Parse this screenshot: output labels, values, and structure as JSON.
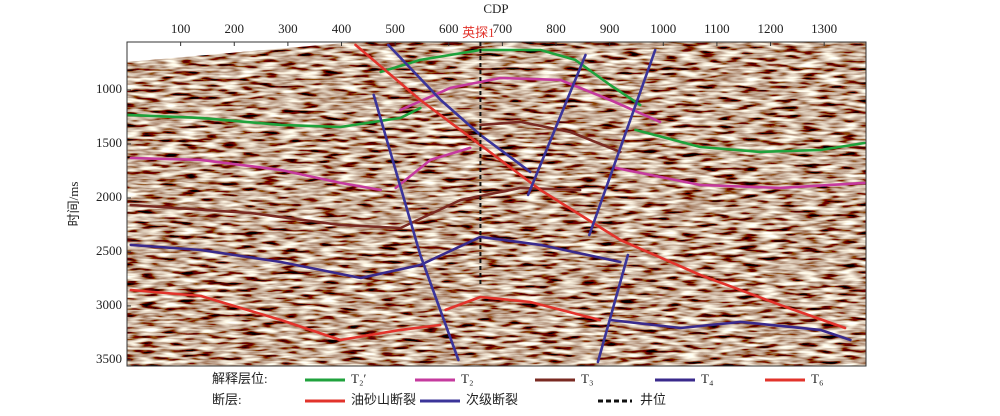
{
  "chart_data": {
    "type": "line",
    "xlabel": "CDP",
    "ylabel": "时间/ms",
    "xlim": [
      0,
      1378
    ],
    "ylim": [
      3556,
      556
    ],
    "xticks": [
      100,
      200,
      300,
      400,
      500,
      600,
      700,
      800,
      900,
      1000,
      1100,
      1200,
      1300
    ],
    "yticks": [
      1000,
      1500,
      2000,
      2500,
      3000,
      3500
    ],
    "legend": {
      "horizons_title": "解释层位:",
      "faults_title": "断层:"
    },
    "series": [
      {
        "name": "T₂′",
        "kind": "horizon",
        "color": "#1fa23c",
        "x": [
          1,
          137,
          287,
          398,
          510,
          547,
          null,
          473,
          547,
          659,
          771,
          836,
          901,
          957,
          null,
          948,
          1069,
          1181,
          1293,
          1375
        ],
        "values": [
          1231,
          1259,
          1324,
          1343,
          1259,
          1167,
          null,
          833,
          722,
          630,
          630,
          722,
          954,
          1139,
          null,
          1370,
          1528,
          1574,
          1556,
          1491
        ]
      },
      {
        "name": "T₂",
        "kind": "horizon",
        "color": "#c53a9e",
        "x": [
          7,
          138,
          287,
          398,
          473,
          null,
          501,
          566,
          640,
          null,
          510,
          603,
          696,
          808,
          901,
          994,
          null,
          911,
          1069,
          1218,
          1375
        ],
        "values": [
          1630,
          1648,
          1741,
          1861,
          1926,
          null,
          1907,
          1648,
          1537,
          null,
          1185,
          981,
          889,
          907,
          1093,
          1296,
          null,
          1722,
          1880,
          1907,
          1861
        ]
      },
      {
        "name": "T₃",
        "kind": "horizon",
        "color": "#7a2a22",
        "x": [
          7,
          230,
          398,
          510,
          622,
          734,
          845,
          null,
          659,
          734,
          827,
          920
        ],
        "values": [
          2065,
          2139,
          2250,
          2278,
          2019,
          1907,
          1926,
          null,
          1324,
          1296,
          1389,
          1574
        ]
      },
      {
        "name": "T₄",
        "kind": "horizon",
        "color": "#3a2a8c",
        "x": [
          7,
          138,
          287,
          436,
          547,
          659,
          771,
          920,
          null,
          901,
          1032,
          1144,
          1293,
          1349
        ],
        "values": [
          2435,
          2482,
          2593,
          2741,
          2621,
          2361,
          2435,
          2593,
          null,
          3130,
          3204,
          3148,
          3222,
          3315
        ]
      },
      {
        "name": "T₆",
        "kind": "horizon",
        "color": "#e2332b",
        "x": [
          7,
          138,
          287,
          398,
          510,
          584,
          null,
          594,
          659,
          752,
          882
        ],
        "values": [
          2852,
          2908,
          3130,
          3315,
          3222,
          3176,
          null,
          3037,
          2917,
          2963,
          3130
        ]
      },
      {
        "name": "油砂山断裂",
        "kind": "fault",
        "color": "#e2332b",
        "x": [
          426,
          547,
          659,
          771,
          920,
          1069,
          1218,
          1339
        ],
        "values": [
          583,
          1093,
          1509,
          1926,
          2389,
          2713,
          2991,
          3204
        ]
      },
      {
        "name": "次级断裂",
        "kind": "fault",
        "color": "#3b3499",
        "x": [
          460,
          547,
          618,
          null,
          487,
          585,
          659,
          752,
          null,
          855,
          748,
          null,
          985,
          862,
          null,
          934,
          878
        ],
        "values": [
          1046,
          2528,
          3500,
          null,
          583,
          1093,
          1417,
          1759,
          null,
          676,
          1972,
          null,
          630,
          2343,
          null,
          2528,
          3519
        ]
      }
    ],
    "well": {
      "label": "英探1",
      "legend_name": "井位",
      "x": 659,
      "bottom": 2800,
      "label_color": "#e2332b"
    }
  }
}
